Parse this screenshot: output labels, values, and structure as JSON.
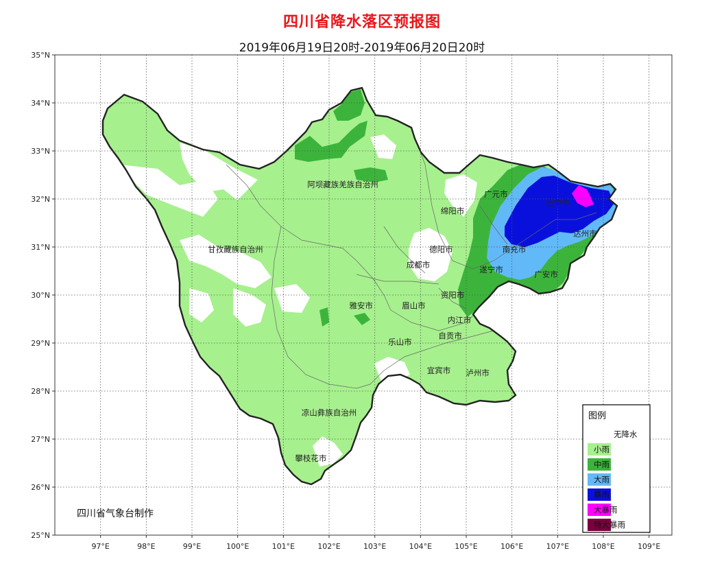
{
  "title": "四川省降水落区预报图",
  "subtitle": "2019年06月19日20时-2019年06月20日20时",
  "producer": "四川省气象台制作",
  "colors": {
    "none": "#ffffff",
    "light": "#a7f08e",
    "moderate": "#3cb43c",
    "heavy": "#62b9f7",
    "rainstorm": "#0a10dc",
    "heavy_rainstorm": "#ff00ff",
    "extreme_rainstorm": "#7a0040",
    "border": "#222222",
    "grid": "#555555"
  },
  "axes": {
    "lat_labels": [
      "35°N",
      "34°N",
      "33°N",
      "32°N",
      "31°N",
      "30°N",
      "29°N",
      "28°N",
      "27°N",
      "26°N",
      "25°N"
    ],
    "lon_labels": [
      "97°E",
      "98°E",
      "99°E",
      "100°E",
      "101°E",
      "102°E",
      "103°E",
      "104°E",
      "105°E",
      "106°E",
      "107°E",
      "108°E",
      "109°E"
    ]
  },
  "places": [
    {
      "name": "阿坝藏族羌族自治州",
      "lon": 102.3,
      "lat": 32.3
    },
    {
      "name": "甘孜藏族自治州",
      "lon": 99.95,
      "lat": 30.95
    },
    {
      "name": "广元市",
      "lon": 105.65,
      "lat": 32.1
    },
    {
      "name": "绵阳市",
      "lon": 104.7,
      "lat": 31.75
    },
    {
      "name": "德阳市",
      "lon": 104.45,
      "lat": 30.95
    },
    {
      "name": "成都市",
      "lon": 103.95,
      "lat": 30.63
    },
    {
      "name": "遂宁市",
      "lon": 105.55,
      "lat": 30.53
    },
    {
      "name": "资阳市",
      "lon": 104.7,
      "lat": 30.0
    },
    {
      "name": "雅安市",
      "lon": 102.7,
      "lat": 29.78
    },
    {
      "name": "眉山市",
      "lon": 103.85,
      "lat": 29.78
    },
    {
      "name": "内江市",
      "lon": 104.85,
      "lat": 29.48
    },
    {
      "name": "乐山市",
      "lon": 103.55,
      "lat": 29.02
    },
    {
      "name": "自贡市",
      "lon": 104.65,
      "lat": 29.15
    },
    {
      "name": "宜宾市",
      "lon": 104.4,
      "lat": 28.43
    },
    {
      "name": "泸州市",
      "lon": 105.25,
      "lat": 28.38
    },
    {
      "name": "凉山彝族自治州",
      "lon": 102.0,
      "lat": 27.55
    },
    {
      "name": "攀枝花市",
      "lon": 101.6,
      "lat": 26.6
    },
    {
      "name": "南充市",
      "lon": 106.05,
      "lat": 30.95
    },
    {
      "name": "巴中市",
      "lon": 107.0,
      "lat": 31.92
    },
    {
      "name": "达州市",
      "lon": 107.6,
      "lat": 31.28
    },
    {
      "name": "广安市",
      "lon": 106.75,
      "lat": 30.43
    }
  ],
  "legend": {
    "title": "图例",
    "items": [
      {
        "label": "无降水",
        "key": "none"
      },
      {
        "label": "小雨",
        "key": "light"
      },
      {
        "label": "中雨",
        "key": "moderate"
      },
      {
        "label": "大雨",
        "key": "heavy"
      },
      {
        "label": "暴雨",
        "key": "rainstorm"
      },
      {
        "label": "大暴雨",
        "key": "heavy_rainstorm"
      },
      {
        "label": "特大暴雨",
        "key": "extreme_rainstorm"
      }
    ]
  }
}
